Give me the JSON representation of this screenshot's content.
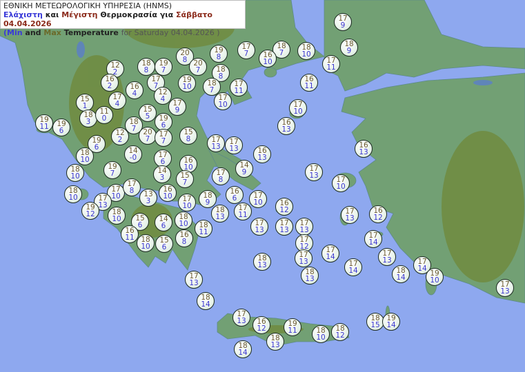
{
  "header": {
    "line1": "ΕΘΝΙΚΗ ΜΕΤΕΩΡΟΛΟΓΙΚΗ ΥΠΗΡΕΣΙΑ (HNMS)",
    "line2": {
      "min": "Ελάχιστη",
      "and": "και",
      "max": "Μέγιστη",
      "rest": "Θερμοκρασία για",
      "date": "Σάββατο 04.04.2026"
    },
    "line3": {
      "open": "(Min",
      "and": "and",
      "max": "Max",
      "temp": "Temperature",
      "for": "for",
      "date": "Saturday 04.04.2026 )"
    }
  },
  "colors": {
    "sea": "#8ea8ef",
    "land": "#72a074",
    "max_text": "#6c5a32",
    "min_text": "#3b36d0"
  },
  "stations": [
    {
      "max": "17",
      "min": "9"
    },
    {
      "max": "18",
      "min": "9"
    },
    {
      "max": "17",
      "min": "11"
    },
    {
      "max": "18",
      "min": "10"
    },
    {
      "max": "18",
      "min": "7"
    },
    {
      "max": "16",
      "min": "10"
    },
    {
      "max": "17",
      "min": "7"
    },
    {
      "max": "19",
      "min": "8"
    },
    {
      "max": "20",
      "min": "8"
    },
    {
      "max": "20",
      "min": "7"
    },
    {
      "max": "18",
      "min": "8"
    },
    {
      "max": "19",
      "min": "10"
    },
    {
      "max": "18",
      "min": "7"
    },
    {
      "max": "17",
      "min": "10"
    },
    {
      "max": "17",
      "min": "11"
    },
    {
      "max": "16",
      "min": "11"
    },
    {
      "max": "17",
      "min": "10"
    },
    {
      "max": "16",
      "min": "13"
    },
    {
      "max": "12",
      "min": "2"
    },
    {
      "max": "18",
      "min": "8"
    },
    {
      "max": "19",
      "min": "7"
    },
    {
      "max": "17",
      "min": "7"
    },
    {
      "max": "16",
      "min": "2"
    },
    {
      "max": "16",
      "min": "4"
    },
    {
      "max": "17",
      "min": "4"
    },
    {
      "max": "15",
      "min": "5"
    },
    {
      "max": "12",
      "min": "4"
    },
    {
      "max": "17",
      "min": "9"
    },
    {
      "max": "15",
      "min": "1"
    },
    {
      "max": "18",
      "min": "3"
    },
    {
      "max": "11",
      "min": "0"
    },
    {
      "max": "19",
      "min": "11"
    },
    {
      "max": "19",
      "min": "6"
    },
    {
      "max": "18",
      "min": "7"
    },
    {
      "max": "19",
      "min": "6"
    },
    {
      "max": "12",
      "min": "2"
    },
    {
      "max": "20",
      "min": "7"
    },
    {
      "max": "17",
      "min": "7"
    },
    {
      "max": "15",
      "min": "8"
    },
    {
      "max": "19",
      "min": "6"
    },
    {
      "max": "18",
      "min": "10"
    },
    {
      "max": "18",
      "min": "10"
    },
    {
      "max": "19",
      "min": "7"
    },
    {
      "max": "14",
      "min": "-0"
    },
    {
      "max": "17",
      "min": "6"
    },
    {
      "max": "14",
      "min": "3"
    },
    {
      "max": "16",
      "min": "10"
    },
    {
      "max": "15",
      "min": "7"
    },
    {
      "max": "17",
      "min": "13"
    },
    {
      "max": "17",
      "min": "13"
    },
    {
      "max": "16",
      "min": "13"
    },
    {
      "max": "14",
      "min": "9"
    },
    {
      "max": "17",
      "min": "8"
    },
    {
      "max": "18",
      "min": "10"
    },
    {
      "max": "17",
      "min": "10"
    },
    {
      "max": "17",
      "min": "8"
    },
    {
      "max": "13",
      "min": "3"
    },
    {
      "max": "16",
      "min": "10"
    },
    {
      "max": "17",
      "min": "13"
    },
    {
      "max": "19",
      "min": "12"
    },
    {
      "max": "18",
      "min": "10"
    },
    {
      "max": "15",
      "min": "6"
    },
    {
      "max": "14",
      "min": "6"
    },
    {
      "max": "18",
      "min": "10"
    },
    {
      "max": "17",
      "min": "10"
    },
    {
      "max": "18",
      "min": "9"
    },
    {
      "max": "18",
      "min": "13"
    },
    {
      "max": "16",
      "min": "6"
    },
    {
      "max": "17",
      "min": "10"
    },
    {
      "max": "17",
      "min": "11"
    },
    {
      "max": "18",
      "min": "11"
    },
    {
      "max": "16",
      "min": "11"
    },
    {
      "max": "18",
      "min": "10"
    },
    {
      "max": "15",
      "min": "6"
    },
    {
      "max": "16",
      "min": "8"
    },
    {
      "max": "17",
      "min": "13"
    },
    {
      "max": "16",
      "min": "12"
    },
    {
      "max": "17",
      "min": "13"
    },
    {
      "max": "17",
      "min": "13"
    },
    {
      "max": "17",
      "min": "12"
    },
    {
      "max": "17",
      "min": "13"
    },
    {
      "max": "17",
      "min": "13"
    },
    {
      "max": "17",
      "min": "10"
    },
    {
      "max": "16",
      "min": "13"
    },
    {
      "max": "17",
      "min": "13"
    },
    {
      "max": "16",
      "min": "12"
    },
    {
      "max": "17",
      "min": "14"
    },
    {
      "max": "17",
      "min": "14"
    },
    {
      "max": "17",
      "min": "14"
    },
    {
      "max": "17",
      "min": "13"
    },
    {
      "max": "18",
      "min": "14"
    },
    {
      "max": "17",
      "min": "14"
    },
    {
      "max": "19",
      "min": "10"
    },
    {
      "max": "17",
      "min": "13"
    },
    {
      "max": "18",
      "min": "13"
    },
    {
      "max": "18",
      "min": "13"
    },
    {
      "max": "17",
      "min": "13"
    },
    {
      "max": "18",
      "min": "14"
    },
    {
      "max": "17",
      "min": "13"
    },
    {
      "max": "16",
      "min": "12"
    },
    {
      "max": "19",
      "min": "11"
    },
    {
      "max": "18",
      "min": "13"
    },
    {
      "max": "18",
      "min": "10"
    },
    {
      "max": "18",
      "min": "12"
    },
    {
      "max": "18",
      "min": "14"
    },
    {
      "max": "18",
      "min": "15"
    },
    {
      "max": "19",
      "min": "14"
    }
  ]
}
